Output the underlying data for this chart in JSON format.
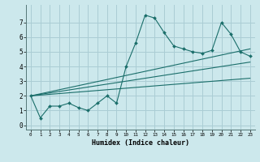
{
  "xlabel": "Humidex (Indice chaleur)",
  "bg_color": "#cce8ec",
  "grid_color": "#aacdd4",
  "line_color": "#1a6e6a",
  "xlim": [
    -0.5,
    23.5
  ],
  "ylim": [
    -0.3,
    8.2
  ],
  "xticks": [
    0,
    1,
    2,
    3,
    4,
    5,
    6,
    7,
    8,
    9,
    10,
    11,
    12,
    13,
    14,
    15,
    16,
    17,
    18,
    19,
    20,
    21,
    22,
    23
  ],
  "yticks": [
    0,
    1,
    2,
    3,
    4,
    5,
    6,
    7
  ],
  "series": [
    {
      "x": [
        0,
        1,
        2,
        3,
        4,
        5,
        6,
        7,
        8,
        9,
        10,
        11,
        12,
        13,
        14,
        15,
        16,
        17,
        18,
        19,
        20,
        21,
        22,
        23
      ],
      "y": [
        2.0,
        0.5,
        1.3,
        1.3,
        1.5,
        1.2,
        1.0,
        1.5,
        2.0,
        1.5,
        4.0,
        5.6,
        7.5,
        7.3,
        6.3,
        5.4,
        5.2,
        5.0,
        4.9,
        5.1,
        7.0,
        6.2,
        5.0,
        4.7
      ],
      "markers": true
    },
    {
      "x": [
        0,
        23
      ],
      "y": [
        2.0,
        5.2
      ],
      "markers": false
    },
    {
      "x": [
        0,
        23
      ],
      "y": [
        2.0,
        4.3
      ],
      "markers": false
    },
    {
      "x": [
        0,
        23
      ],
      "y": [
        2.0,
        3.2
      ],
      "markers": false
    }
  ]
}
